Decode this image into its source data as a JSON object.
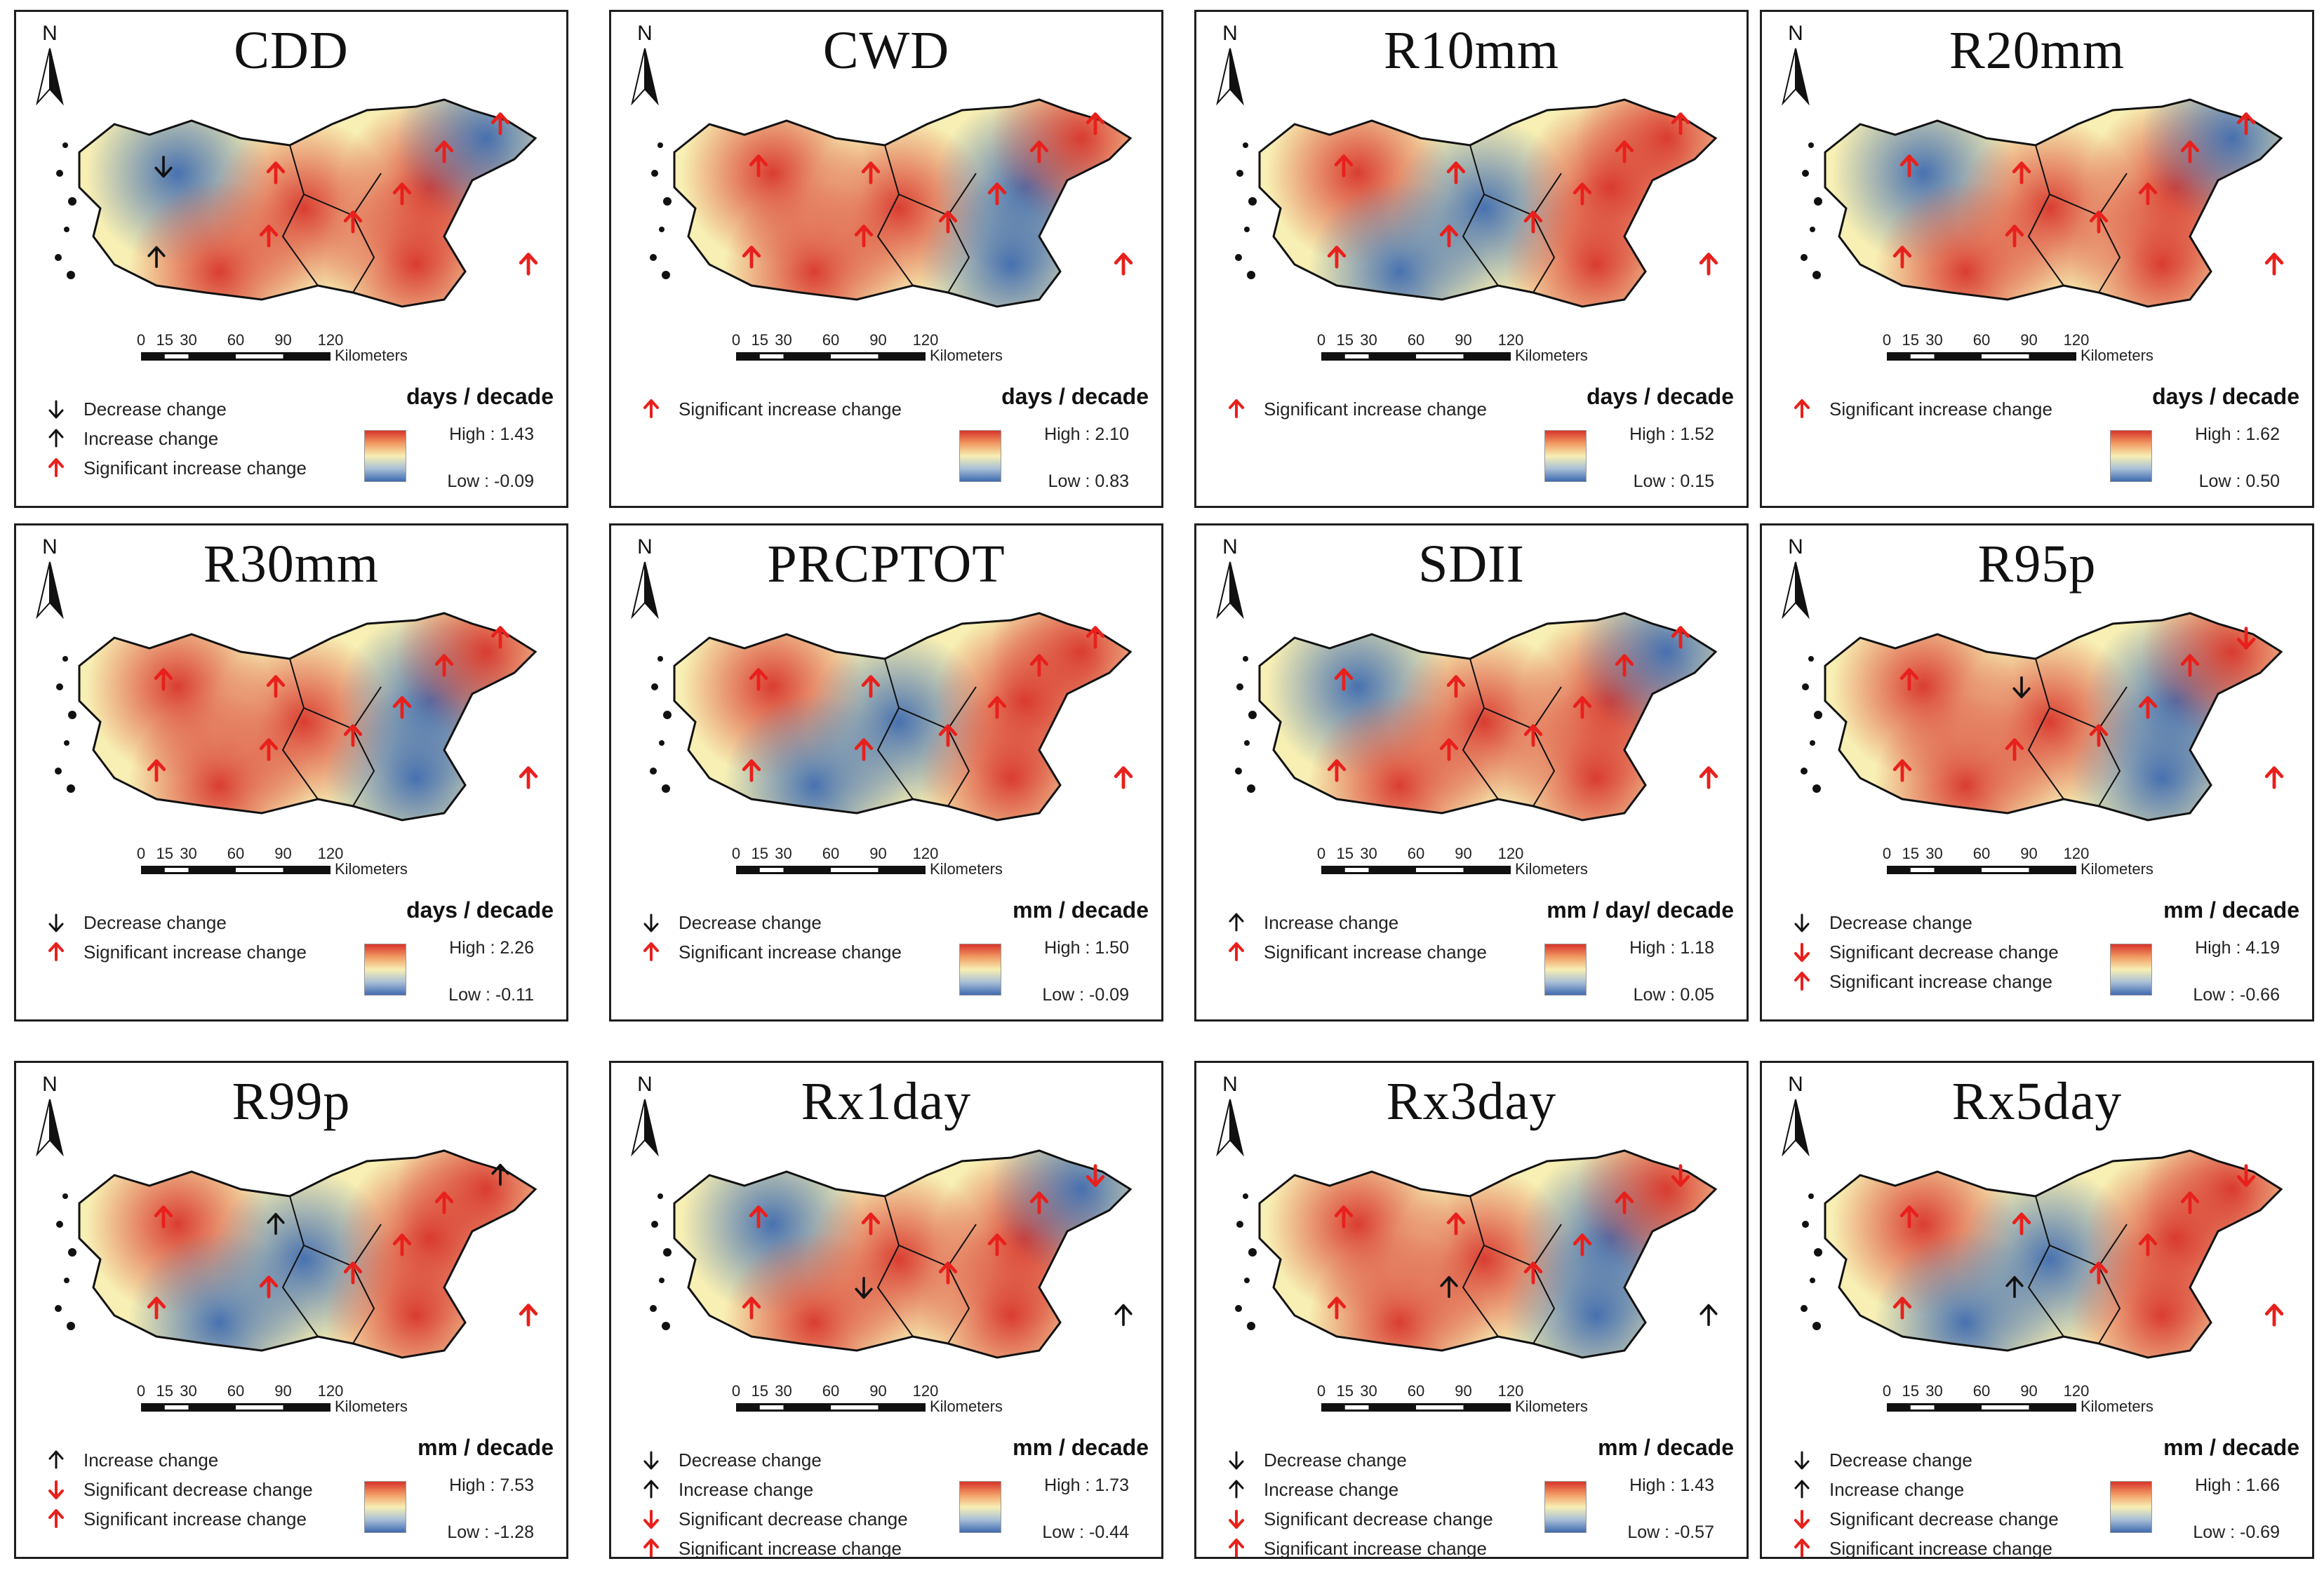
{
  "common": {
    "north_label": "N",
    "scale_ticks": [
      "0",
      "15",
      "30",
      "60",
      "90",
      "120"
    ],
    "scale_unit": "Kilometers",
    "legend_labels": {
      "decrease": "Decrease change",
      "increase": "Increase change",
      "sig_increase": "Significant increase change",
      "sig_decrease": "Significant decrease change"
    },
    "colors": {
      "high": "#d8342a",
      "mid": "#f7efb3",
      "low": "#3f6bb0",
      "sig_arrow": "#e8201c",
      "arrow": "#111111"
    }
  },
  "panels": [
    {
      "title": "CDD",
      "unit": "days / decade",
      "high": "High : 1.43",
      "low": "Low : -0.09",
      "legend": [
        "decrease",
        "increase",
        "sig_increase"
      ],
      "arrows": [
        "dec",
        "sig_inc",
        "sig_inc",
        "sig_inc",
        "sig_inc",
        "sig_inc",
        "sig_inc",
        "inc",
        "sig_inc"
      ]
    },
    {
      "title": "CWD",
      "unit": "days / decade",
      "high": "High : 2.10",
      "low": "Low : 0.83",
      "legend": [
        "sig_increase"
      ],
      "arrows": [
        "sig_inc",
        "sig_inc",
        "sig_inc",
        "sig_inc",
        "sig_inc",
        "sig_inc",
        "sig_inc",
        "sig_inc",
        "sig_inc"
      ]
    },
    {
      "title": "R10mm",
      "unit": "days / decade",
      "high": "High : 1.52",
      "low": "Low : 0.15",
      "legend": [
        "sig_increase"
      ],
      "arrows": [
        "sig_inc",
        "sig_inc",
        "sig_inc",
        "sig_inc",
        "sig_inc",
        "sig_inc",
        "sig_inc",
        "sig_inc",
        "sig_inc"
      ]
    },
    {
      "title": "R20mm",
      "unit": "days / decade",
      "high": "High : 1.62",
      "low": "Low : 0.50",
      "legend": [
        "sig_increase"
      ],
      "arrows": [
        "sig_inc",
        "sig_inc",
        "sig_inc",
        "sig_inc",
        "sig_inc",
        "sig_inc",
        "sig_inc",
        "sig_inc",
        "sig_inc"
      ]
    },
    {
      "title": "R30mm",
      "unit": "days / decade",
      "high": "High : 2.26",
      "low": "Low : -0.11",
      "legend": [
        "decrease",
        "sig_increase"
      ],
      "arrows": [
        "sig_inc",
        "sig_inc",
        "sig_inc",
        "sig_inc",
        "sig_inc",
        "sig_inc",
        "sig_inc",
        "sig_inc",
        "sig_inc"
      ]
    },
    {
      "title": "PRCPTOT",
      "unit": "mm / decade",
      "high": "High : 1.50",
      "low": "Low : -0.09",
      "legend": [
        "decrease",
        "sig_increase"
      ],
      "arrows": [
        "sig_inc",
        "sig_inc",
        "sig_inc",
        "sig_inc",
        "sig_inc",
        "sig_inc",
        "sig_inc",
        "sig_inc",
        "sig_inc"
      ]
    },
    {
      "title": "SDII",
      "unit": "mm / day/ decade",
      "high": "High : 1.18",
      "low": "Low : 0.05",
      "legend": [
        "increase",
        "sig_increase"
      ],
      "arrows": [
        "sig_inc",
        "sig_inc",
        "sig_inc",
        "sig_inc",
        "sig_inc",
        "sig_inc",
        "sig_inc",
        "sig_inc",
        "sig_inc"
      ]
    },
    {
      "title": "R95p",
      "unit": "mm / decade",
      "high": "High : 4.19",
      "low": "Low : -0.66",
      "legend": [
        "decrease",
        "sig_decrease",
        "sig_increase"
      ],
      "arrows": [
        "sig_inc",
        "dec",
        "sig_inc",
        "sig_dec",
        "sig_inc",
        "sig_inc",
        "sig_inc",
        "sig_inc",
        "sig_inc"
      ]
    },
    {
      "title": "R99p",
      "unit": "mm / decade",
      "high": "High : 7.53",
      "low": "Low : -1.28",
      "legend": [
        "increase",
        "sig_decrease",
        "sig_increase"
      ],
      "arrows": [
        "sig_inc",
        "inc",
        "sig_inc",
        "inc",
        "sig_inc",
        "sig_inc",
        "sig_inc",
        "sig_inc",
        "sig_inc"
      ]
    },
    {
      "title": "Rx1day",
      "unit": "mm / decade",
      "high": "High : 1.73",
      "low": "Low : -0.44",
      "legend": [
        "decrease",
        "increase",
        "sig_decrease",
        "sig_increase"
      ],
      "arrows": [
        "sig_inc",
        "sig_inc",
        "sig_inc",
        "sig_dec",
        "sig_inc",
        "sig_inc",
        "dec",
        "sig_inc",
        "inc"
      ]
    },
    {
      "title": "Rx3day",
      "unit": "mm / decade",
      "high": "High : 1.43",
      "low": "Low : -0.57",
      "legend": [
        "decrease",
        "increase",
        "sig_decrease",
        "sig_increase"
      ],
      "arrows": [
        "sig_inc",
        "sig_inc",
        "sig_inc",
        "sig_dec",
        "sig_inc",
        "sig_inc",
        "inc",
        "sig_inc",
        "inc"
      ]
    },
    {
      "title": "Rx5day",
      "unit": "mm / decade",
      "high": "High : 1.66",
      "low": "Low : -0.69",
      "legend": [
        "decrease",
        "increase",
        "sig_decrease",
        "sig_increase"
      ],
      "arrows": [
        "sig_inc",
        "sig_inc",
        "sig_inc",
        "sig_dec",
        "sig_inc",
        "sig_inc",
        "inc",
        "sig_inc",
        "sig_inc"
      ]
    }
  ]
}
